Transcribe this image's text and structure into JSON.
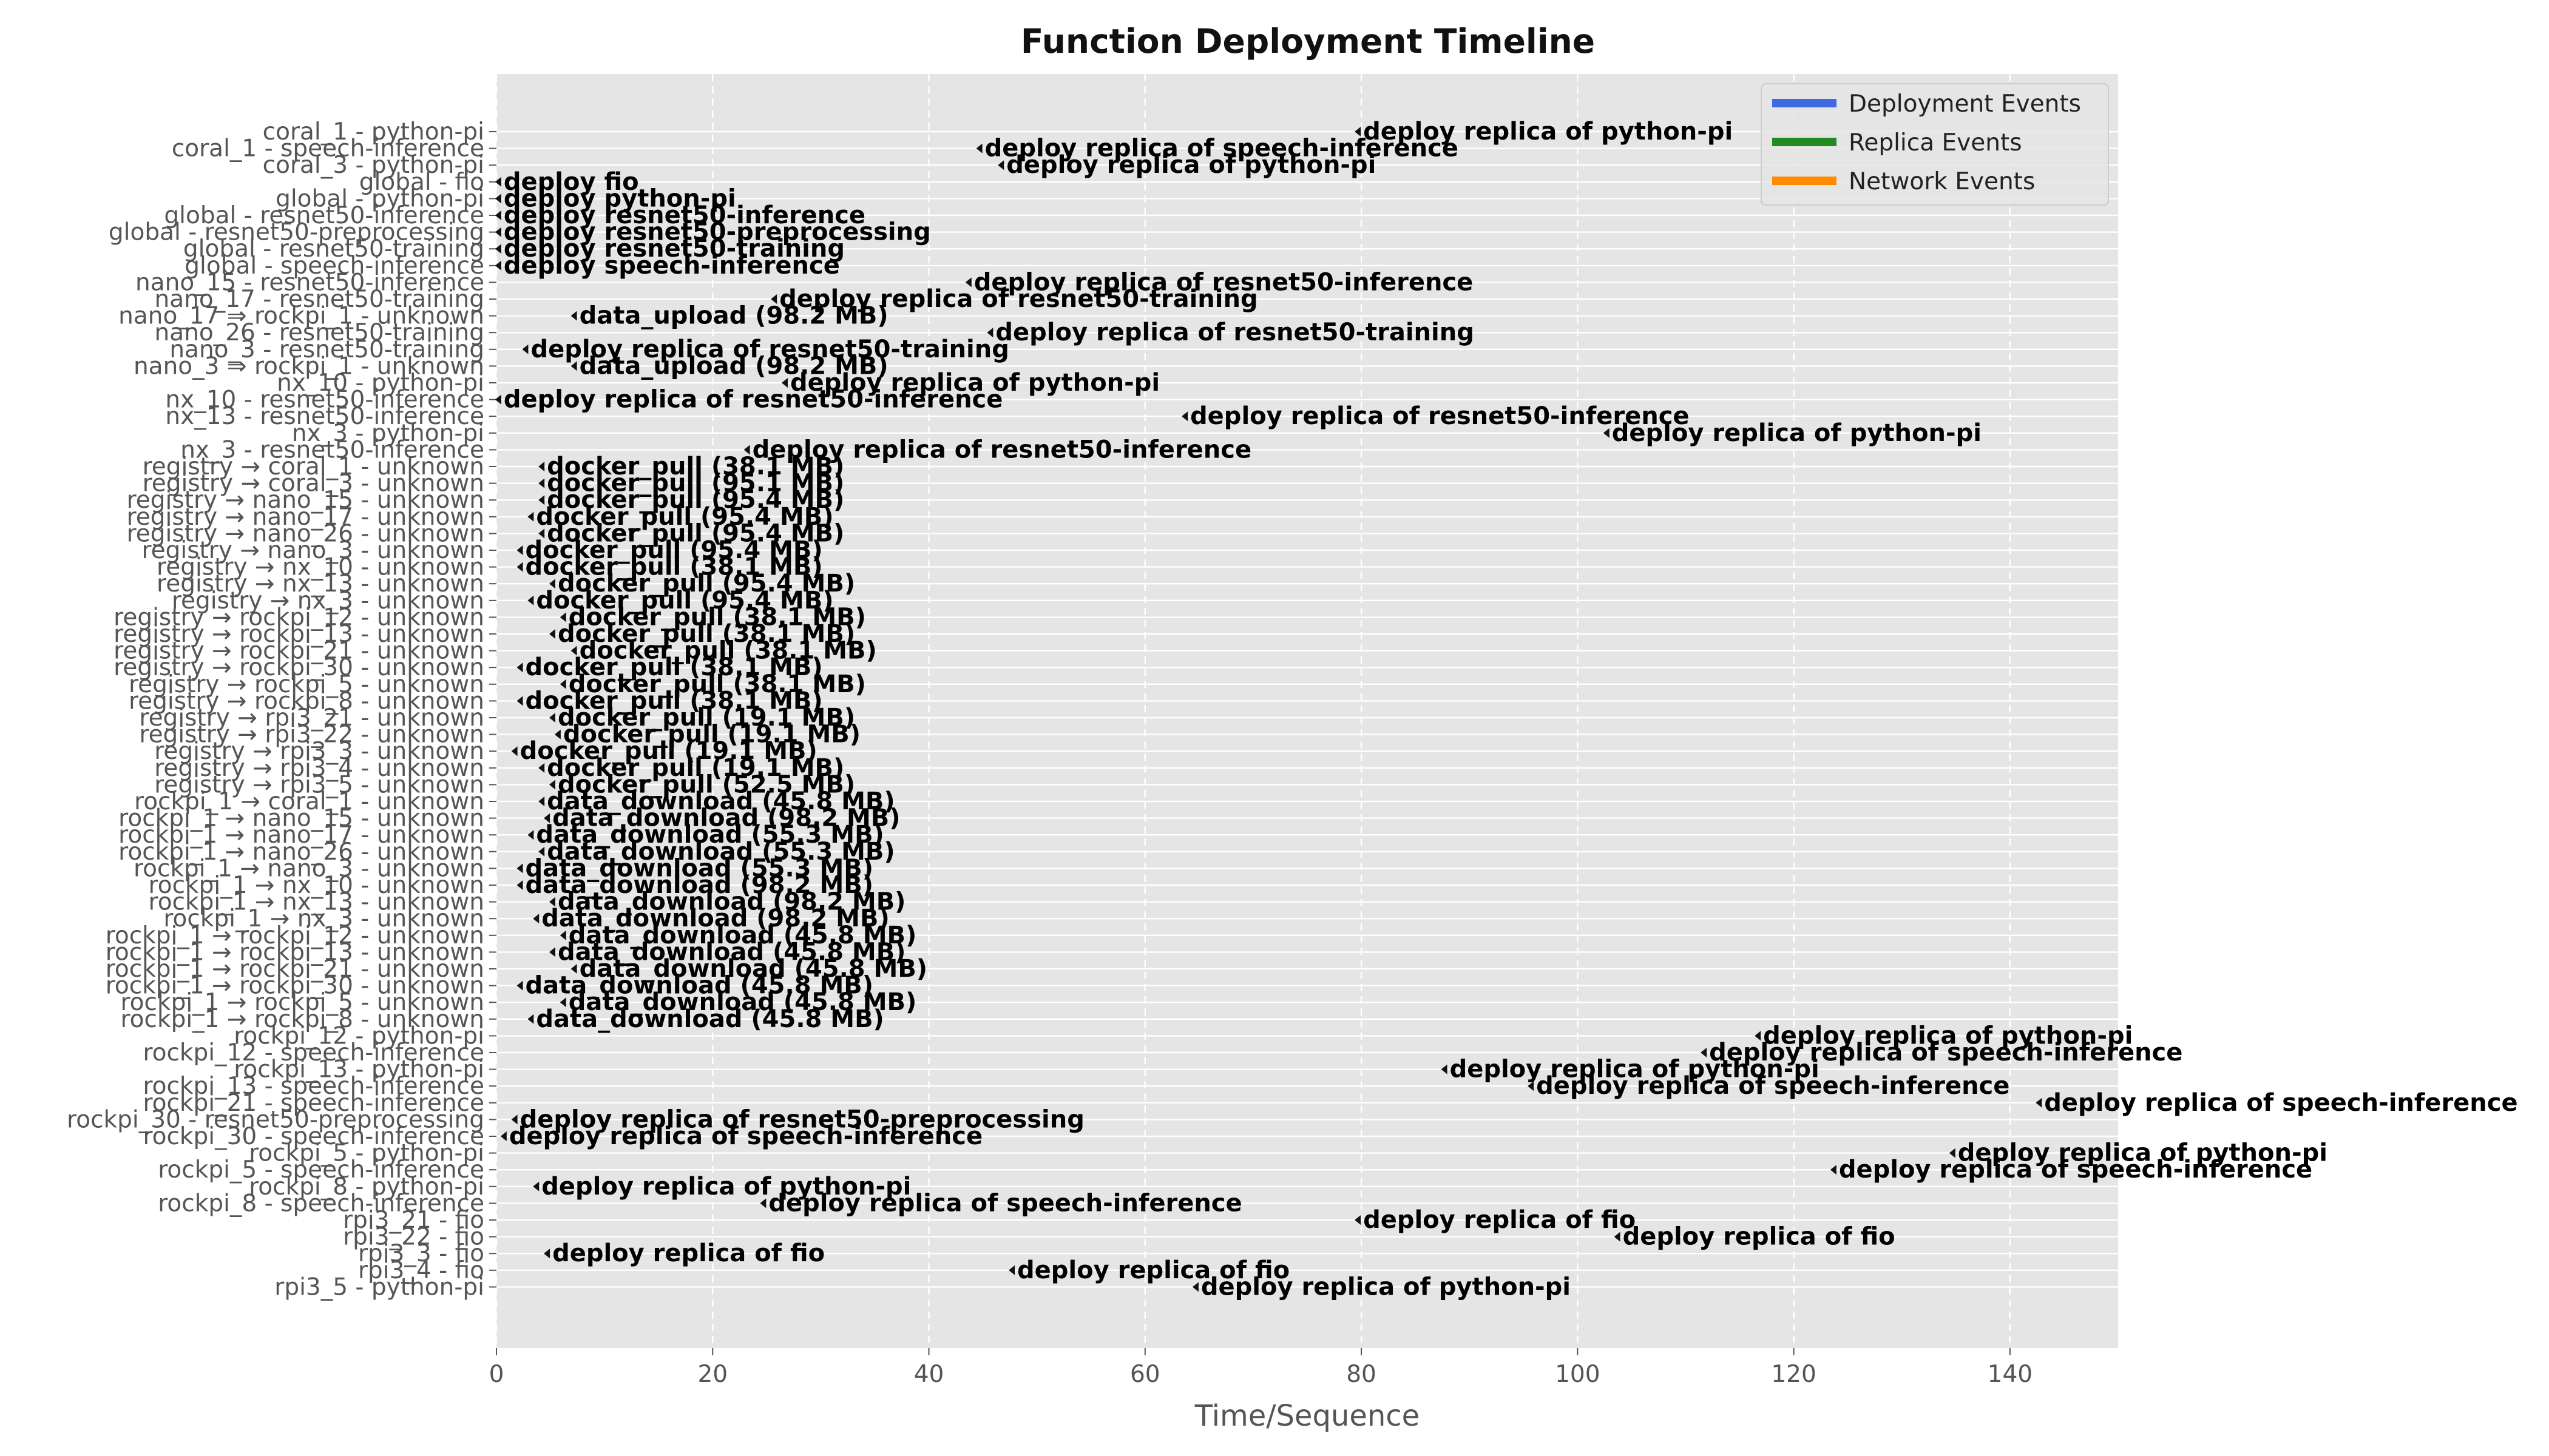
{
  "chart_data": {
    "type": "timeline",
    "title": "Function Deployment Timeline",
    "xlabel": "Time/Sequence",
    "ylabel": "",
    "xlim": [
      0,
      150
    ],
    "xticks": [
      0,
      20,
      40,
      60,
      80,
      100,
      120,
      140
    ],
    "grid": true,
    "legend": {
      "position": "top-right",
      "entries": [
        {
          "name": "Deployment Events",
          "color": "#4169e1"
        },
        {
          "name": "Replica Events",
          "color": "#228b22"
        },
        {
          "name": "Network Events",
          "color": "#ff8c00"
        }
      ]
    },
    "rows": [
      "coral_1 - python-pi",
      "coral_1 - speech-inference",
      "coral_3 - python-pi",
      "global - fio",
      "global - python-pi",
      "global - resnet50-inference",
      "global - resnet50-preprocessing",
      "global - resnet50-training",
      "global - speech-inference",
      "nano_15 - resnet50-inference",
      "nano_17 - resnet50-training",
      "nano_17 ⇒ rockpi_1 - unknown",
      "nano_26 - resnet50-training",
      "nano_3 - resnet50-training",
      "nano_3 ⇒ rockpi_1 - unknown",
      "nx_10 - python-pi",
      "nx_10 - resnet50-inference",
      "nx_13 - resnet50-inference",
      "nx_3 - python-pi",
      "nx_3 - resnet50-inference",
      "registry → coral_1 - unknown",
      "registry → coral_3 - unknown",
      "registry → nano_15 - unknown",
      "registry → nano_17 - unknown",
      "registry → nano_26 - unknown",
      "registry → nano_3 - unknown",
      "registry → nx_10 - unknown",
      "registry → nx_13 - unknown",
      "registry → nx_3 - unknown",
      "registry → rockpi_12 - unknown",
      "registry → rockpi_13 - unknown",
      "registry → rockpi_21 - unknown",
      "registry → rockpi_30 - unknown",
      "registry → rockpi_5 - unknown",
      "registry → rockpi_8 - unknown",
      "registry → rpi3_21 - unknown",
      "registry → rpi3_22 - unknown",
      "registry → rpi3_3 - unknown",
      "registry → rpi3_4 - unknown",
      "registry → rpi3_5 - unknown",
      "rockpi_1 → coral_1 - unknown",
      "rockpi_1 → nano_15 - unknown",
      "rockpi_1 → nano_17 - unknown",
      "rockpi_1 → nano_26 - unknown",
      "rockpi_1 → nano_3 - unknown",
      "rockpi_1 → nx_10 - unknown",
      "rockpi_1 → nx_13 - unknown",
      "rockpi_1 → nx_3 - unknown",
      "rockpi_1 → rockpi_12 - unknown",
      "rockpi_1 → rockpi_13 - unknown",
      "rockpi_1 → rockpi_21 - unknown",
      "rockpi_1 → rockpi_30 - unknown",
      "rockpi_1 → rockpi_5 - unknown",
      "rockpi_1 → rockpi_8 - unknown",
      "rockpi_12 - python-pi",
      "rockpi_12 - speech-inference",
      "rockpi_13 - python-pi",
      "rockpi_13 - speech-inference",
      "rockpi_21 - speech-inference",
      "rockpi_30 - resnet50-preprocessing",
      "rockpi_30 - speech-inference",
      "rockpi_5 - python-pi",
      "rockpi_5 - speech-inference",
      "rockpi_8 - python-pi",
      "rockpi_8 - speech-inference",
      "rpi3_21 - fio",
      "rpi3_22 - fio",
      "rpi3_3 - fio",
      "rpi3_4 - fio",
      "rpi3_5 - python-pi"
    ],
    "events": [
      {
        "row": 0,
        "x": 80,
        "label": "deploy replica of python-pi"
      },
      {
        "row": 1,
        "x": 45,
        "label": "deploy replica of speech-inference"
      },
      {
        "row": 2,
        "x": 47,
        "label": "deploy replica of python-pi"
      },
      {
        "row": 3,
        "x": 0.5,
        "label": "deploy fio"
      },
      {
        "row": 4,
        "x": 0.5,
        "label": "deploy python-pi"
      },
      {
        "row": 5,
        "x": 0.5,
        "label": "deploy resnet50-inference"
      },
      {
        "row": 6,
        "x": 0.5,
        "label": "deploy resnet50-preprocessing"
      },
      {
        "row": 7,
        "x": 0.5,
        "label": "deploy resnet50-training"
      },
      {
        "row": 8,
        "x": 0.5,
        "label": "deploy speech-inference"
      },
      {
        "row": 9,
        "x": 44,
        "label": "deploy replica of resnet50-inference"
      },
      {
        "row": 10,
        "x": 26,
        "label": "deploy replica of resnet50-training"
      },
      {
        "row": 11,
        "x": 7.5,
        "label": "data_upload (98.2 MB)"
      },
      {
        "row": 12,
        "x": 46,
        "label": "deploy replica of resnet50-training"
      },
      {
        "row": 13,
        "x": 3,
        "label": "deploy replica of resnet50-training"
      },
      {
        "row": 14,
        "x": 7.5,
        "label": "data_upload (98.2 MB)"
      },
      {
        "row": 15,
        "x": 27,
        "label": "deploy replica of python-pi"
      },
      {
        "row": 16,
        "x": 0.5,
        "label": "deploy replica of resnet50-inference"
      },
      {
        "row": 17,
        "x": 64,
        "label": "deploy replica of resnet50-inference"
      },
      {
        "row": 18,
        "x": 103,
        "label": "deploy replica of python-pi"
      },
      {
        "row": 19,
        "x": 23.5,
        "label": "deploy replica of resnet50-inference"
      },
      {
        "row": 20,
        "x": 4.5,
        "label": "docker_pull (38.1 MB)"
      },
      {
        "row": 21,
        "x": 4.5,
        "label": "docker_pull (95.1 MB)"
      },
      {
        "row": 22,
        "x": 4.5,
        "label": "docker_pull (95.4 MB)"
      },
      {
        "row": 23,
        "x": 3.5,
        "label": "docker_pull (95.4 MB)"
      },
      {
        "row": 24,
        "x": 4.5,
        "label": "docker_pull (95.4 MB)"
      },
      {
        "row": 25,
        "x": 2.5,
        "label": "docker_pull (95.4 MB)"
      },
      {
        "row": 26,
        "x": 2.5,
        "label": "docker_pull (38.1 MB)"
      },
      {
        "row": 27,
        "x": 5.5,
        "label": "docker_pull (95.4 MB)"
      },
      {
        "row": 28,
        "x": 3.5,
        "label": "docker_pull (95.4 MB)"
      },
      {
        "row": 29,
        "x": 6.5,
        "label": "docker_pull (38.1 MB)"
      },
      {
        "row": 30,
        "x": 5.5,
        "label": "docker_pull (38.1 MB)"
      },
      {
        "row": 31,
        "x": 7.5,
        "label": "docker_pull (38.1 MB)"
      },
      {
        "row": 32,
        "x": 2.5,
        "label": "docker_pull (38.1 MB)"
      },
      {
        "row": 33,
        "x": 6.5,
        "label": "docker_pull (38.1 MB)"
      },
      {
        "row": 34,
        "x": 2.5,
        "label": "docker_pull (38.1 MB)"
      },
      {
        "row": 35,
        "x": 5.5,
        "label": "docker_pull (19.1 MB)"
      },
      {
        "row": 36,
        "x": 6,
        "label": "docker_pull (19.1 MB)"
      },
      {
        "row": 37,
        "x": 2,
        "label": "docker_pull (19.1 MB)"
      },
      {
        "row": 38,
        "x": 4.5,
        "label": "docker_pull (19.1 MB)"
      },
      {
        "row": 39,
        "x": 5.5,
        "label": "docker_pull (52.5 MB)"
      },
      {
        "row": 40,
        "x": 4.5,
        "label": "data_download (45.8 MB)"
      },
      {
        "row": 41,
        "x": 5,
        "label": "data_download (98.2 MB)"
      },
      {
        "row": 42,
        "x": 3.5,
        "label": "data_download (55.3 MB)"
      },
      {
        "row": 43,
        "x": 4.5,
        "label": "data_download (55.3 MB)"
      },
      {
        "row": 44,
        "x": 2.5,
        "label": "data_download (55.3 MB)"
      },
      {
        "row": 45,
        "x": 2.5,
        "label": "data_download (98.2 MB)"
      },
      {
        "row": 46,
        "x": 5.5,
        "label": "data_download (98.2 MB)"
      },
      {
        "row": 47,
        "x": 4,
        "label": "data_download (98.2 MB)"
      },
      {
        "row": 48,
        "x": 6.5,
        "label": "data_download (45.8 MB)"
      },
      {
        "row": 49,
        "x": 5.5,
        "label": "data_download (45.8 MB)"
      },
      {
        "row": 50,
        "x": 7.5,
        "label": "data_download (45.8 MB)"
      },
      {
        "row": 51,
        "x": 2.5,
        "label": "data_download (45.8 MB)"
      },
      {
        "row": 52,
        "x": 6.5,
        "label": "data_download (45.8 MB)"
      },
      {
        "row": 53,
        "x": 3.5,
        "label": "data_download (45.8 MB)"
      },
      {
        "row": 54,
        "x": 117,
        "label": "deploy replica of python-pi"
      },
      {
        "row": 55,
        "x": 112,
        "label": "deploy replica of speech-inference"
      },
      {
        "row": 56,
        "x": 88,
        "label": "deploy replica of python-pi"
      },
      {
        "row": 57,
        "x": 96,
        "label": "deploy replica of speech-inference"
      },
      {
        "row": 58,
        "x": 143,
        "label": "deploy replica of speech-inference"
      },
      {
        "row": 59,
        "x": 2,
        "label": "deploy replica of resnet50-preprocessing"
      },
      {
        "row": 60,
        "x": 1,
        "label": "deploy replica of speech-inference"
      },
      {
        "row": 61,
        "x": 135,
        "label": "deploy replica of python-pi"
      },
      {
        "row": 62,
        "x": 124,
        "label": "deploy replica of speech-inference"
      },
      {
        "row": 63,
        "x": 4,
        "label": "deploy replica of python-pi"
      },
      {
        "row": 64,
        "x": 25,
        "label": "deploy replica of speech-inference"
      },
      {
        "row": 65,
        "x": 80,
        "label": "deploy replica of fio"
      },
      {
        "row": 66,
        "x": 104,
        "label": "deploy replica of fio"
      },
      {
        "row": 67,
        "x": 5,
        "label": "deploy replica of fio"
      },
      {
        "row": 68,
        "x": 48,
        "label": "deploy replica of fio"
      },
      {
        "row": 69,
        "x": 65,
        "label": "deploy replica of python-pi"
      }
    ]
  }
}
